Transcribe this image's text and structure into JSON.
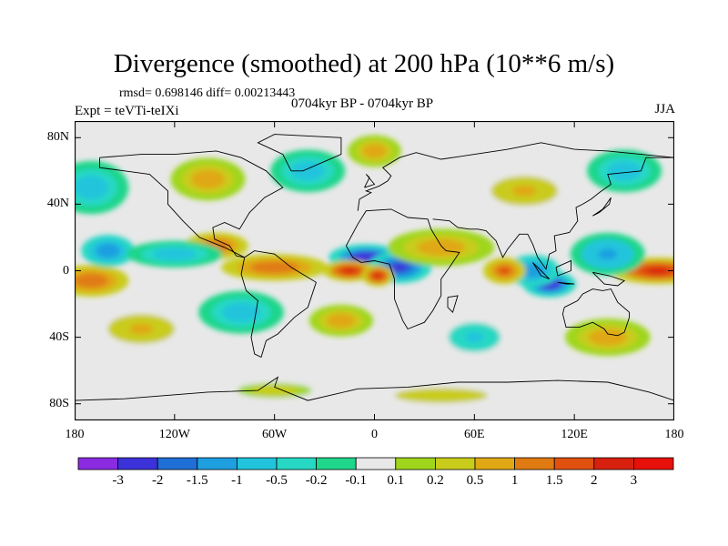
{
  "title": "Divergence (smoothed) at 200 hPa (10**6 m/s)",
  "stats": "rmsd= 0.698146 diff= 0.00213443",
  "experiment": "Expt = teVTi-teIXi",
  "period": "0704kyr BP - 0704kyr BP",
  "season": "JJA",
  "map": {
    "lon_range": [
      -180,
      180
    ],
    "lat_range": [
      -90,
      90
    ],
    "y_ticks": [
      {
        "label": "80N",
        "lat": 80
      },
      {
        "label": "40N",
        "lat": 40
      },
      {
        "label": "0",
        "lat": 0
      },
      {
        "label": "40S",
        "lat": -40
      },
      {
        "label": "80S",
        "lat": -80
      }
    ],
    "x_ticks": [
      {
        "label": "180",
        "lon": -180
      },
      {
        "label": "120W",
        "lon": -120
      },
      {
        "label": "60W",
        "lon": -60
      },
      {
        "label": "0",
        "lon": 0
      },
      {
        "label": "60E",
        "lon": 60
      },
      {
        "label": "120E",
        "lon": 120
      },
      {
        "label": "180",
        "lon": 180
      }
    ],
    "background_color": "#e8e8e8"
  },
  "colorbar": {
    "levels": [
      "-3",
      "-2",
      "-1.5",
      "-1",
      "-0.5",
      "-0.2",
      "-0.1",
      "0.1",
      "0.2",
      "0.5",
      "1",
      "1.5",
      "2",
      "3"
    ],
    "colors": [
      "#8a2be2",
      "#3c32d9",
      "#1f6fd6",
      "#1e9fe0",
      "#21c4dc",
      "#26d8c4",
      "#1fd68a",
      "#e8e8e8",
      "#9fd61c",
      "#c9cc1a",
      "#e0a815",
      "#e07b12",
      "#e0500f",
      "#d8200e",
      "#e8100a"
    ]
  },
  "field_blobs": [
    {
      "lon": -5,
      "lat": 8,
      "v": -3,
      "sx": 14,
      "sy": 5
    },
    {
      "lon": 15,
      "lat": 2,
      "v": -2.5,
      "sx": 12,
      "sy": 6
    },
    {
      "lon": -15,
      "lat": 0,
      "v": 2.5,
      "sx": 10,
      "sy": 4
    },
    {
      "lon": 2,
      "lat": -3,
      "v": 2.5,
      "sx": 6,
      "sy": 4
    },
    {
      "lon": 105,
      "lat": -8,
      "v": -3,
      "sx": 10,
      "sy": 5
    },
    {
      "lon": 95,
      "lat": 0,
      "v": -1.5,
      "sx": 10,
      "sy": 6
    },
    {
      "lon": 170,
      "lat": 0,
      "v": 2.5,
      "sx": 18,
      "sy": 5
    },
    {
      "lon": 78,
      "lat": 0,
      "v": 2,
      "sx": 8,
      "sy": 5
    },
    {
      "lon": -170,
      "lat": -6,
      "v": 1.5,
      "sx": 14,
      "sy": 6
    },
    {
      "lon": -160,
      "lat": 12,
      "v": -1.5,
      "sx": 10,
      "sy": 6
    },
    {
      "lon": -95,
      "lat": 15,
      "v": 1.5,
      "sx": 12,
      "sy": 5
    },
    {
      "lon": -60,
      "lat": 2,
      "v": 1.5,
      "sx": 20,
      "sy": 5
    },
    {
      "lon": -120,
      "lat": 10,
      "v": -1,
      "sx": 18,
      "sy": 5
    },
    {
      "lon": 40,
      "lat": 14,
      "v": 1,
      "sx": 20,
      "sy": 7
    },
    {
      "lon": 140,
      "lat": 10,
      "v": -1.2,
      "sx": 14,
      "sy": 8
    },
    {
      "lon": -100,
      "lat": 55,
      "v": 1,
      "sx": 14,
      "sy": 8
    },
    {
      "lon": -40,
      "lat": 60,
      "v": -1,
      "sx": 14,
      "sy": 8
    },
    {
      "lon": 0,
      "lat": 72,
      "v": 1,
      "sx": 10,
      "sy": 6
    },
    {
      "lon": 90,
      "lat": 48,
      "v": 0.6,
      "sx": 18,
      "sy": 8
    },
    {
      "lon": 150,
      "lat": 60,
      "v": -0.8,
      "sx": 14,
      "sy": 8
    },
    {
      "lon": -170,
      "lat": 50,
      "v": -0.8,
      "sx": 14,
      "sy": 10
    },
    {
      "lon": -80,
      "lat": -25,
      "v": -0.8,
      "sx": 16,
      "sy": 8
    },
    {
      "lon": -20,
      "lat": -30,
      "v": 0.8,
      "sx": 12,
      "sy": 6
    },
    {
      "lon": 60,
      "lat": -40,
      "v": -0.6,
      "sx": 14,
      "sy": 8
    },
    {
      "lon": 140,
      "lat": -40,
      "v": 0.8,
      "sx": 16,
      "sy": 7
    },
    {
      "lon": -140,
      "lat": -35,
      "v": 0.6,
      "sx": 18,
      "sy": 8
    },
    {
      "lon": 40,
      "lat": -75,
      "v": 0.5,
      "sx": 25,
      "sy": 4
    },
    {
      "lon": -60,
      "lat": -72,
      "v": 0.4,
      "sx": 20,
      "sy": 4
    }
  ]
}
